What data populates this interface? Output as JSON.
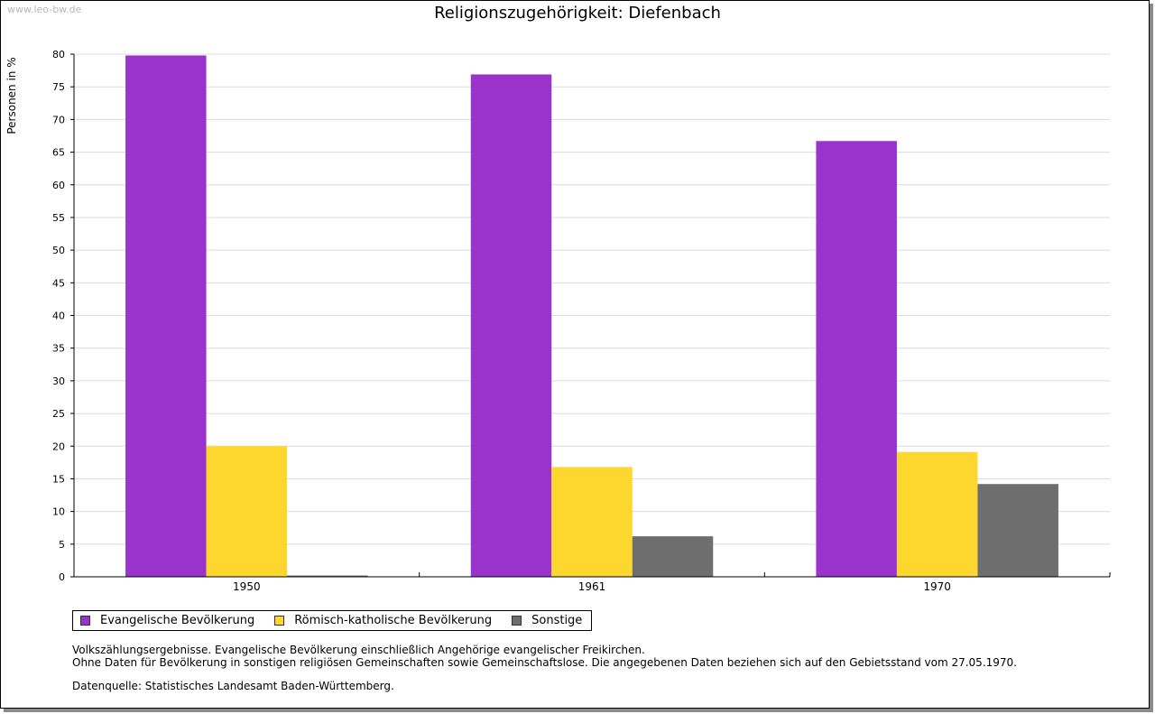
{
  "watermark": "www.leo-bw.de",
  "chart_data": {
    "type": "bar",
    "title": "Religionszugehörigkeit: Diefenbach",
    "xlabel": "",
    "ylabel": "Personen in %",
    "ylim": [
      0,
      80
    ],
    "yticks": [
      0,
      5,
      10,
      15,
      20,
      25,
      30,
      35,
      40,
      45,
      50,
      55,
      60,
      65,
      70,
      75,
      80
    ],
    "categories": [
      "1950",
      "1961",
      "1970"
    ],
    "grid": true,
    "legend_position": "bottom",
    "series": [
      {
        "name": "Evangelische Bevölkerung",
        "color": "#9933cc",
        "values": [
          79.8,
          76.9,
          66.7
        ]
      },
      {
        "name": "Römisch-katholische Bevölkerung",
        "color": "#fdd72e",
        "values": [
          20.0,
          16.8,
          19.1
        ]
      },
      {
        "name": "Sonstige",
        "color": "#6e6e6e",
        "values": [
          0.2,
          6.2,
          14.2
        ]
      }
    ]
  },
  "notes": [
    "Volkszählungsergebnisse. Evangelische Bevölkerung einschließlich Angehörige evangelischer Freikirchen.",
    "Ohne Daten für Bevölkerung in sonstigen religiösen Gemeinschaften sowie Gemeinschaftslose. Die angegebenen Daten beziehen sich auf den Gebietsstand vom 27.05.1970."
  ],
  "source": "Datenquelle: Statistisches Landesamt Baden-Württemberg."
}
